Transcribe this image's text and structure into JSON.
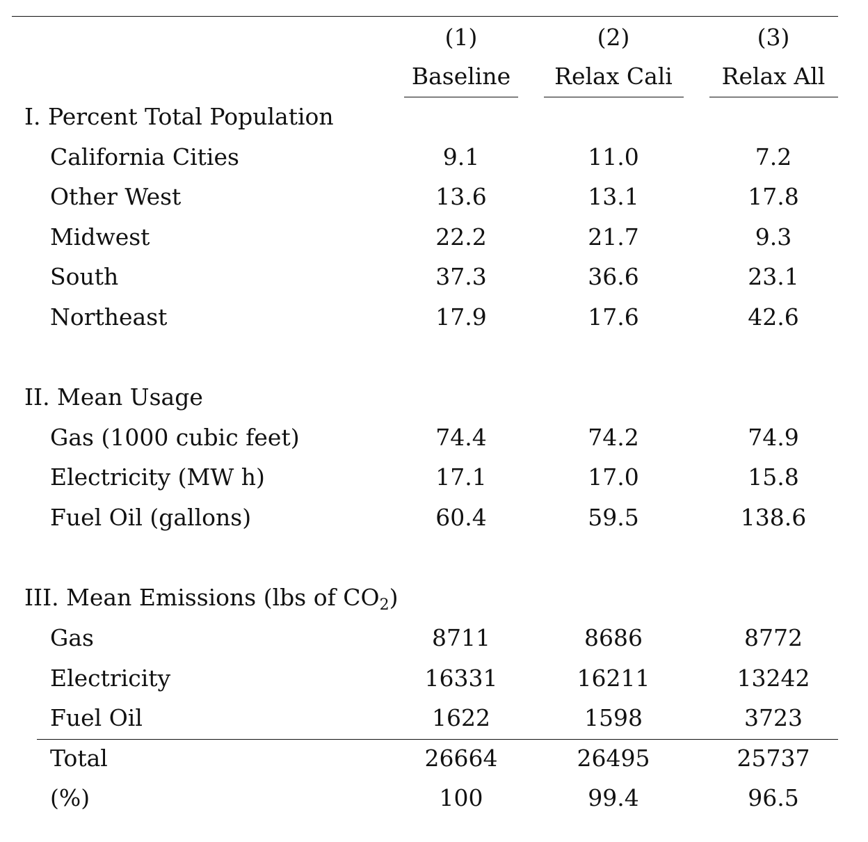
{
  "columns": [
    {
      "num": "(1)",
      "name": "Baseline"
    },
    {
      "num": "(2)",
      "name": "Relax Cali"
    },
    {
      "num": "(3)",
      "name": "Relax All"
    }
  ],
  "sections": [
    {
      "title": "I. Percent Total Population",
      "rows": [
        {
          "label": "California Cities",
          "values": [
            "9.1",
            "11.0",
            "7.2"
          ]
        },
        {
          "label": "Other West",
          "values": [
            "13.6",
            "13.1",
            "17.8"
          ]
        },
        {
          "label": "Midwest",
          "values": [
            "22.2",
            "21.7",
            "9.3"
          ]
        },
        {
          "label": "South",
          "values": [
            "37.3",
            "36.6",
            "23.1"
          ]
        },
        {
          "label": "Northeast",
          "values": [
            "17.9",
            "17.6",
            "42.6"
          ]
        }
      ]
    },
    {
      "title": "II. Mean Usage",
      "rows": [
        {
          "label": "Gas (1000 cubic feet)",
          "values": [
            "74.4",
            "74.2",
            "74.9"
          ]
        },
        {
          "label": "Electricity (MW h)",
          "values": [
            "17.1",
            "17.0",
            "15.8"
          ]
        },
        {
          "label": "Fuel Oil (gallons)",
          "values": [
            "60.4",
            "59.5",
            "138.6"
          ]
        }
      ]
    },
    {
      "title": "III. Mean Emissions (lbs of CO",
      "title_sub": "2",
      "title_end": ")",
      "rows": [
        {
          "label": "Gas",
          "values": [
            "8711",
            "8686",
            "8772"
          ]
        },
        {
          "label": "Electricity",
          "values": [
            "16331",
            "16211",
            "13242"
          ]
        },
        {
          "label": "Fuel Oil",
          "values": [
            "1622",
            "1598",
            "3723"
          ]
        }
      ]
    }
  ],
  "totals": [
    {
      "label": "Total",
      "values": [
        "26664",
        "26495",
        "25737"
      ]
    },
    {
      "label": "(%)",
      "values": [
        "100",
        "99.4",
        "96.5"
      ]
    }
  ]
}
